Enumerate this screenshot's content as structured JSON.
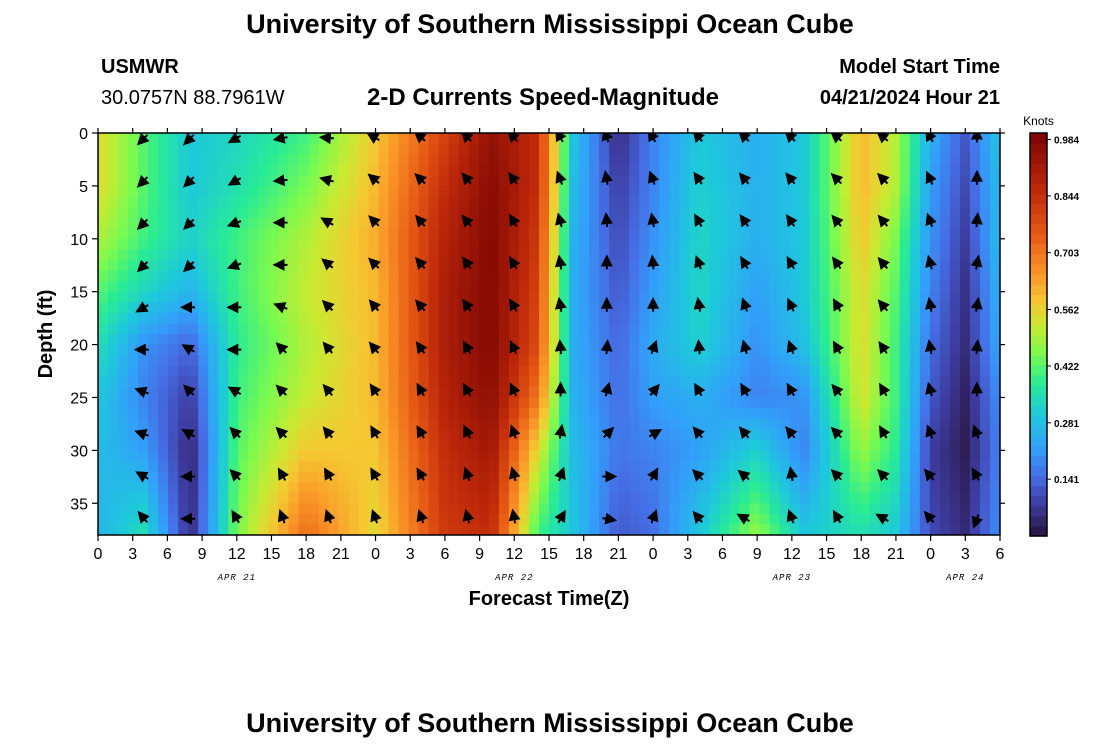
{
  "header": {
    "title_top": "University of Southern Mississippi Ocean Cube",
    "title_bottom": "University of Southern Mississippi Ocean Cube",
    "station_name": "USMWR",
    "station_coords": "30.0757N  88.7961W",
    "chart_subtitle": "2-D Currents Speed-Magnitude",
    "model_label": "Model Start Time",
    "model_time": "04/21/2024 Hour 21"
  },
  "chart_data": {
    "type": "heatmap",
    "title": "2-D Currents Speed-Magnitude",
    "xlabel": "Forecast Time(Z)",
    "ylabel": "Depth (ft)",
    "x_unit": "hours from 00Z Apr 21",
    "x_range": [
      0,
      78
    ],
    "y_range": [
      0,
      38
    ],
    "x_tick_hours": [
      0,
      3,
      6,
      9,
      12,
      15,
      18,
      21,
      24,
      27,
      30,
      33,
      36,
      39,
      42,
      45,
      48,
      51,
      54,
      57,
      60,
      63,
      66,
      69,
      72,
      75,
      78
    ],
    "x_tick_labels": [
      "0",
      "3",
      "6",
      "9",
      "12",
      "15",
      "18",
      "21",
      "0",
      "3",
      "6",
      "9",
      "12",
      "15",
      "18",
      "21",
      "0",
      "3",
      "6",
      "9",
      "12",
      "15",
      "18",
      "21",
      "0",
      "3",
      "6"
    ],
    "date_labels": [
      {
        "hour": 12,
        "label": "APR 21"
      },
      {
        "hour": 36,
        "label": "APR 22"
      },
      {
        "hour": 60,
        "label": "APR 23"
      },
      {
        "hour": 75,
        "label": "APR 24"
      }
    ],
    "y_ticks": [
      0,
      5,
      10,
      15,
      20,
      25,
      30,
      35
    ],
    "colorbar": {
      "label": "Knots",
      "ticks": [
        0.984,
        0.844,
        0.703,
        0.562,
        0.422,
        0.281,
        0.141
      ],
      "range": [
        0.0,
        1.0
      ]
    },
    "speed_knots_profiles": [
      {
        "hour": 0,
        "speed": [
          0.55,
          0.55,
          0.5,
          0.42,
          0.35,
          0.3,
          0.28,
          0.26
        ]
      },
      {
        "hour": 4,
        "speed": [
          0.42,
          0.42,
          0.4,
          0.33,
          0.2,
          0.18,
          0.22,
          0.35
        ]
      },
      {
        "hour": 8,
        "speed": [
          0.3,
          0.3,
          0.32,
          0.26,
          0.14,
          0.08,
          0.04,
          0.05
        ]
      },
      {
        "hour": 12,
        "speed": [
          0.33,
          0.35,
          0.4,
          0.4,
          0.38,
          0.4,
          0.42,
          0.45
        ]
      },
      {
        "hour": 18,
        "speed": [
          0.4,
          0.45,
          0.5,
          0.52,
          0.5,
          0.52,
          0.58,
          0.72
        ]
      },
      {
        "hour": 24,
        "speed": [
          0.58,
          0.6,
          0.62,
          0.6,
          0.6,
          0.6,
          0.58,
          0.55
        ]
      },
      {
        "hour": 30,
        "speed": [
          0.8,
          0.85,
          0.88,
          0.9,
          0.9,
          0.88,
          0.85,
          0.82
        ]
      },
      {
        "hour": 34,
        "speed": [
          0.95,
          0.97,
          0.98,
          0.98,
          0.98,
          0.96,
          0.92,
          0.85
        ]
      },
      {
        "hour": 38,
        "speed": [
          0.85,
          0.85,
          0.82,
          0.8,
          0.78,
          0.7,
          0.55,
          0.4
        ]
      },
      {
        "hour": 41,
        "speed": [
          0.3,
          0.28,
          0.26,
          0.25,
          0.25,
          0.26,
          0.28,
          0.3
        ]
      },
      {
        "hour": 45,
        "speed": [
          0.05,
          0.08,
          0.1,
          0.12,
          0.14,
          0.15,
          0.16,
          0.12
        ]
      },
      {
        "hour": 48,
        "speed": [
          0.18,
          0.18,
          0.2,
          0.22,
          0.24,
          0.22,
          0.18,
          0.15
        ]
      },
      {
        "hour": 52,
        "speed": [
          0.3,
          0.32,
          0.33,
          0.33,
          0.32,
          0.25,
          0.22,
          0.3
        ]
      },
      {
        "hour": 57,
        "speed": [
          0.25,
          0.25,
          0.25,
          0.22,
          0.2,
          0.18,
          0.32,
          0.48
        ]
      },
      {
        "hour": 61,
        "speed": [
          0.3,
          0.3,
          0.3,
          0.3,
          0.28,
          0.2,
          0.18,
          0.3
        ]
      },
      {
        "hour": 66,
        "speed": [
          0.6,
          0.6,
          0.58,
          0.55,
          0.55,
          0.54,
          0.48,
          0.35
        ]
      },
      {
        "hour": 69,
        "speed": [
          0.5,
          0.5,
          0.45,
          0.42,
          0.4,
          0.4,
          0.38,
          0.3
        ]
      },
      {
        "hour": 72,
        "speed": [
          0.25,
          0.22,
          0.2,
          0.18,
          0.15,
          0.12,
          0.08,
          0.1
        ]
      },
      {
        "hour": 75,
        "speed": [
          0.12,
          0.1,
          0.08,
          0.06,
          0.05,
          0.03,
          0.02,
          0.05
        ]
      },
      {
        "hour": 78,
        "speed": [
          0.3,
          0.28,
          0.28,
          0.26,
          0.24,
          0.2,
          0.18,
          0.2
        ]
      }
    ],
    "profile_depths_ft": [
      0,
      5,
      10,
      15,
      20,
      25,
      30,
      38
    ],
    "vector_times_hours": [
      4,
      8,
      12,
      16,
      20,
      24,
      28,
      32,
      36,
      40,
      44,
      48,
      52,
      56,
      60,
      64,
      68,
      72,
      76
    ],
    "vector_depths_ft": [
      0,
      4,
      8,
      12,
      16,
      20,
      24,
      28,
      32,
      36
    ],
    "vector_direction_deg": [
      {
        "hour": 4,
        "deg": [
          225,
          225,
          225,
          225,
          240,
          270,
          290,
          290,
          300,
          320
        ]
      },
      {
        "hour": 8,
        "deg": [
          225,
          225,
          225,
          225,
          270,
          300,
          315,
          300,
          270,
          270
        ]
      },
      {
        "hour": 12,
        "deg": [
          240,
          240,
          250,
          250,
          270,
          270,
          300,
          315,
          315,
          330
        ]
      },
      {
        "hour": 16,
        "deg": [
          260,
          265,
          270,
          270,
          290,
          315,
          315,
          315,
          330,
          340
        ]
      },
      {
        "hour": 20,
        "deg": [
          275,
          285,
          300,
          310,
          315,
          320,
          320,
          320,
          330,
          340
        ]
      },
      {
        "hour": 24,
        "deg": [
          300,
          310,
          315,
          315,
          320,
          320,
          325,
          330,
          330,
          340
        ]
      },
      {
        "hour": 28,
        "deg": [
          310,
          315,
          320,
          320,
          320,
          325,
          330,
          330,
          330,
          340
        ]
      },
      {
        "hour": 32,
        "deg": [
          315,
          320,
          320,
          325,
          325,
          330,
          330,
          335,
          340,
          345
        ]
      },
      {
        "hour": 36,
        "deg": [
          320,
          325,
          330,
          330,
          330,
          335,
          335,
          340,
          345,
          350
        ]
      },
      {
        "hour": 40,
        "deg": [
          330,
          340,
          345,
          350,
          350,
          355,
          0,
          10,
          20,
          30
        ]
      },
      {
        "hour": 44,
        "deg": [
          340,
          350,
          355,
          0,
          0,
          5,
          15,
          45,
          90,
          100
        ]
      },
      {
        "hour": 48,
        "deg": [
          330,
          340,
          350,
          355,
          0,
          20,
          40,
          60,
          30,
          20
        ]
      },
      {
        "hour": 52,
        "deg": [
          320,
          325,
          330,
          340,
          350,
          355,
          330,
          320,
          315,
          320
        ]
      },
      {
        "hour": 56,
        "deg": [
          315,
          320,
          325,
          330,
          340,
          345,
          330,
          320,
          310,
          300
        ]
      },
      {
        "hour": 60,
        "deg": [
          315,
          320,
          325,
          330,
          335,
          340,
          330,
          320,
          350,
          340
        ]
      },
      {
        "hour": 64,
        "deg": [
          310,
          315,
          320,
          325,
          330,
          330,
          320,
          315,
          315,
          330
        ]
      },
      {
        "hour": 68,
        "deg": [
          310,
          315,
          320,
          320,
          320,
          325,
          330,
          330,
          315,
          300
        ]
      },
      {
        "hour": 72,
        "deg": [
          330,
          335,
          340,
          345,
          350,
          350,
          345,
          340,
          320,
          320
        ]
      },
      {
        "hour": 76,
        "deg": [
          0,
          0,
          5,
          10,
          10,
          5,
          0,
          340,
          330,
          200
        ]
      }
    ]
  }
}
